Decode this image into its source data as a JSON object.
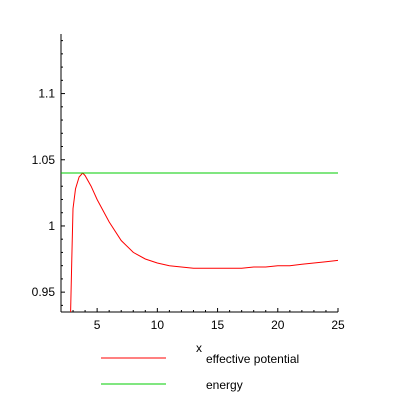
{
  "chart_data": {
    "type": "line",
    "title": "",
    "xlabel": "x",
    "ylabel": "",
    "xlim": [
      2,
      25
    ],
    "ylim": [
      0.935,
      1.145
    ],
    "x_ticks": [
      5,
      10,
      15,
      20,
      25
    ],
    "x_tick_labels": [
      "5",
      "10",
      "15",
      "20",
      "25"
    ],
    "y_ticks": [
      0.95,
      1.0,
      1.05,
      1.1
    ],
    "y_tick_labels": [
      "0.95",
      "1",
      "1.05",
      "1.1"
    ],
    "grid": false,
    "legend_position": "bottom",
    "series": [
      {
        "name": "effective potential",
        "color": "#ff0000",
        "x": [
          2.8,
          2.9,
          3.0,
          3.2,
          3.5,
          3.8,
          4.0,
          4.5,
          5.0,
          6.0,
          7.0,
          8.0,
          9.0,
          10.0,
          11.0,
          12.0,
          13.0,
          14.0,
          15.0,
          16.0,
          17.0,
          18.0,
          19.0,
          20.0,
          21.0,
          22.0,
          23.0,
          24.0,
          25.0
        ],
        "y": [
          0.935,
          0.975,
          1.013,
          1.028,
          1.037,
          1.04,
          1.038,
          1.03,
          1.02,
          1.003,
          0.989,
          0.98,
          0.975,
          0.972,
          0.97,
          0.969,
          0.968,
          0.968,
          0.968,
          0.968,
          0.968,
          0.969,
          0.969,
          0.97,
          0.97,
          0.971,
          0.972,
          0.973,
          0.974
        ]
      },
      {
        "name": "energy",
        "color": "#00cc00",
        "x": [
          2,
          25
        ],
        "y": [
          1.04,
          1.04
        ]
      }
    ]
  }
}
